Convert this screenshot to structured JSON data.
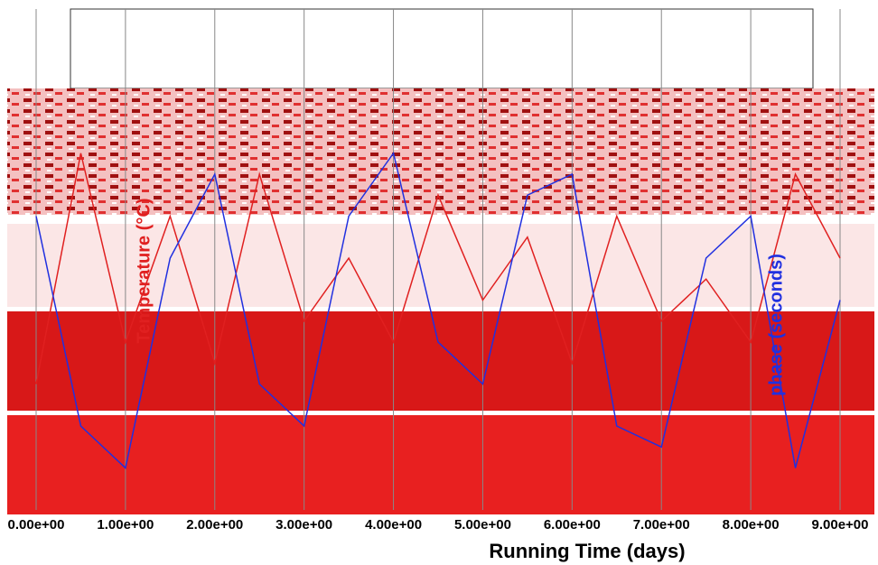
{
  "chart_data": {
    "type": "line",
    "xlabel": "Running Time (days)",
    "ylabel": "Temperature (°C)",
    "y2label": "phase (seconds)",
    "x": [
      0,
      0.5,
      1,
      1.5,
      2,
      2.5,
      3,
      3.5,
      4,
      4.5,
      5,
      5.5,
      6,
      6.5,
      7,
      7.5,
      8,
      8.5,
      9
    ],
    "series": [
      {
        "color": "#e02020",
        "values": [
          30,
          85,
          40,
          70,
          35,
          80,
          45,
          60,
          40,
          75,
          50,
          65,
          35,
          70,
          45,
          55,
          40,
          80,
          60
        ]
      },
      {
        "color": "#2030e0",
        "axis": "y2",
        "values": [
          0.7,
          0.2,
          0.1,
          0.6,
          0.8,
          0.3,
          0.2,
          0.7,
          0.85,
          0.4,
          0.3,
          0.75,
          0.8,
          0.2,
          0.15,
          0.6,
          0.7,
          0.1,
          0.5
        ]
      }
    ],
    "xlim": [
      0,
      9
    ],
    "xticks": [
      {
        "value": 0,
        "label": "0.00e+00"
      },
      {
        "value": 1,
        "label": "1.00e+00"
      },
      {
        "value": 2,
        "label": "2.00e+00"
      },
      {
        "value": 3,
        "label": "3.00e+00"
      },
      {
        "value": 4,
        "label": "4.00e+00"
      },
      {
        "value": 5,
        "label": "5.00e+00"
      },
      {
        "value": 6,
        "label": "6.00e+00"
      },
      {
        "value": 7,
        "label": "7.00e+00"
      },
      {
        "value": 8,
        "label": "8.00e+00"
      },
      {
        "value": 9,
        "label": "9.00e+00"
      }
    ],
    "ylim": [
      0,
      100
    ],
    "y2lim": [
      0,
      1
    ],
    "grid": true
  }
}
